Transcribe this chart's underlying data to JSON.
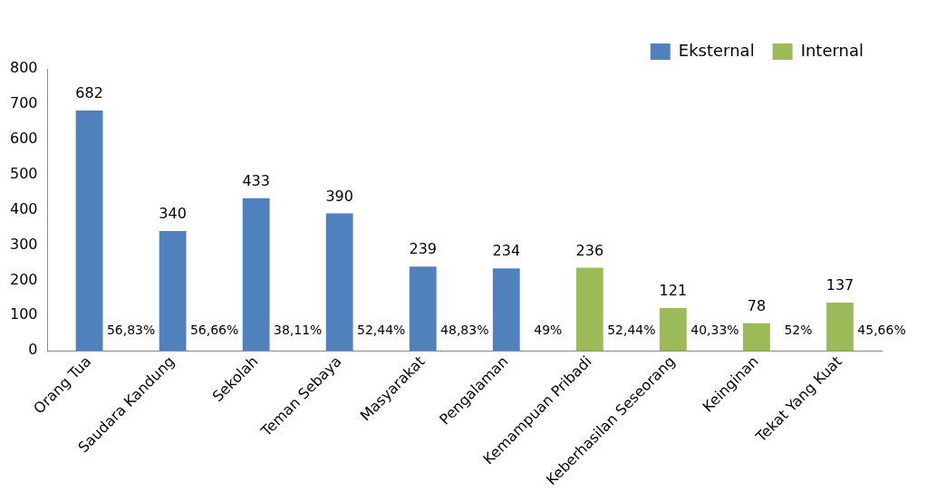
{
  "chart_data": {
    "type": "bar",
    "categories": [
      "Orang Tua",
      "Saudara Kandung",
      "Sekolah",
      "Teman Sebaya",
      "Masyarakat",
      "Pengalaman",
      "Kemampuan Pribadi",
      "Keberhasilan Seseorang",
      "Keinginan",
      "Tekat Yang Kuat"
    ],
    "series": [
      {
        "name": "Eksternal",
        "color": "#4f81bd",
        "values": [
          682,
          340,
          433,
          390,
          239,
          234,
          null,
          null,
          null,
          null
        ]
      },
      {
        "name": "Internal",
        "color": "#9bbb59",
        "values": [
          null,
          null,
          null,
          null,
          null,
          null,
          236,
          121,
          78,
          137
        ]
      }
    ],
    "ylim": [
      0,
      800
    ],
    "yticks": [
      0,
      100,
      200,
      300,
      400,
      500,
      600,
      700,
      800
    ],
    "grid": false,
    "legend": "top right",
    "data_labels": true,
    "annotations": [
      "56,83%",
      "56,66%",
      "38,11%",
      "52,44%",
      "48,83%",
      "49%",
      "52,44%",
      "40,33%",
      "52%",
      "45,66%"
    ]
  }
}
